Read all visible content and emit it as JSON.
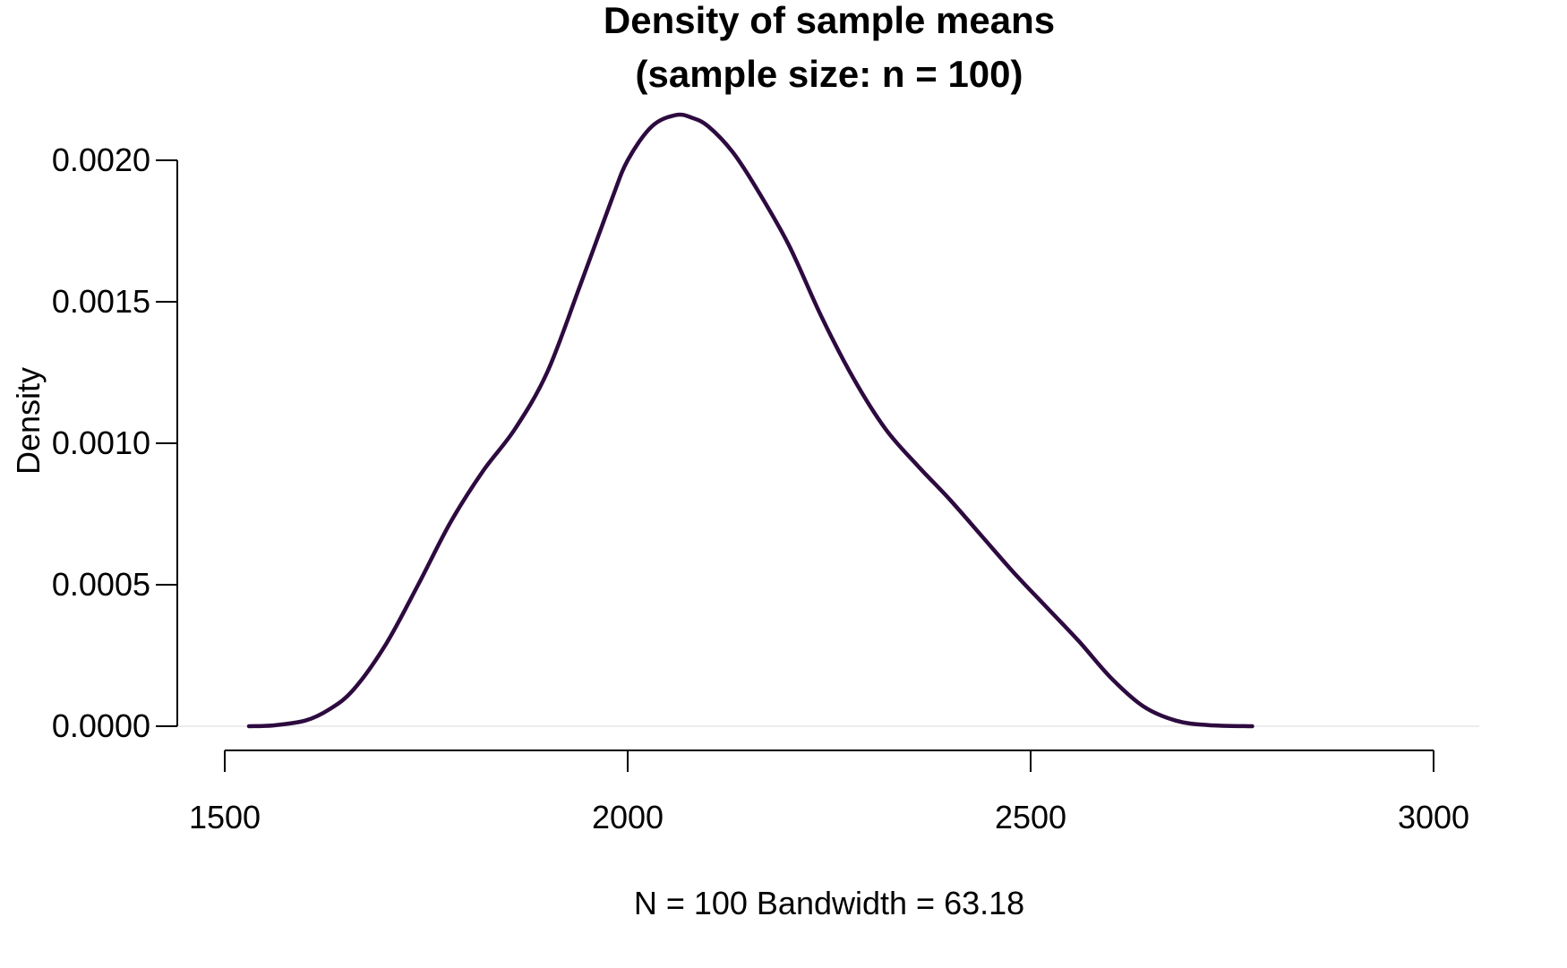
{
  "chart_data": {
    "type": "line",
    "title_line1": "Density of sample means",
    "title_line2": "(sample size: n = 100)",
    "xlabel": "N = 100   Bandwidth = 63.18",
    "ylabel": "Density",
    "xlim": [
      1500,
      3000
    ],
    "ylim": [
      0,
      0.002
    ],
    "x_ticks": [
      "1500",
      "2000",
      "2500",
      "3000"
    ],
    "y_ticks": [
      "0.0000",
      "0.0005",
      "0.0010",
      "0.0015",
      "0.0020"
    ],
    "grid": false,
    "line_color": "#2d0a3f",
    "series": [
      {
        "x": [
          1530,
          1560,
          1600,
          1630,
          1660,
          1700,
          1740,
          1780,
          1820,
          1860,
          1900,
          1940,
          1980,
          2000,
          2030,
          2060,
          2080,
          2100,
          2130,
          2160,
          2200,
          2240,
          2280,
          2320,
          2360,
          2400,
          2440,
          2480,
          2520,
          2560,
          2600,
          2640,
          2680,
          2720,
          2775
        ],
        "y": [
          0.0,
          3e-06,
          2e-05,
          6e-05,
          0.00013,
          0.00029,
          0.0005,
          0.00072,
          0.0009,
          0.00105,
          0.00125,
          0.00155,
          0.00186,
          0.002,
          0.00212,
          0.00216,
          0.00215,
          0.00212,
          0.00203,
          0.0019,
          0.0017,
          0.00145,
          0.00123,
          0.00105,
          0.00092,
          0.0008,
          0.00067,
          0.00054,
          0.00042,
          0.0003,
          0.00017,
          7e-05,
          2e-05,
          4e-06,
          0.0
        ]
      }
    ]
  }
}
